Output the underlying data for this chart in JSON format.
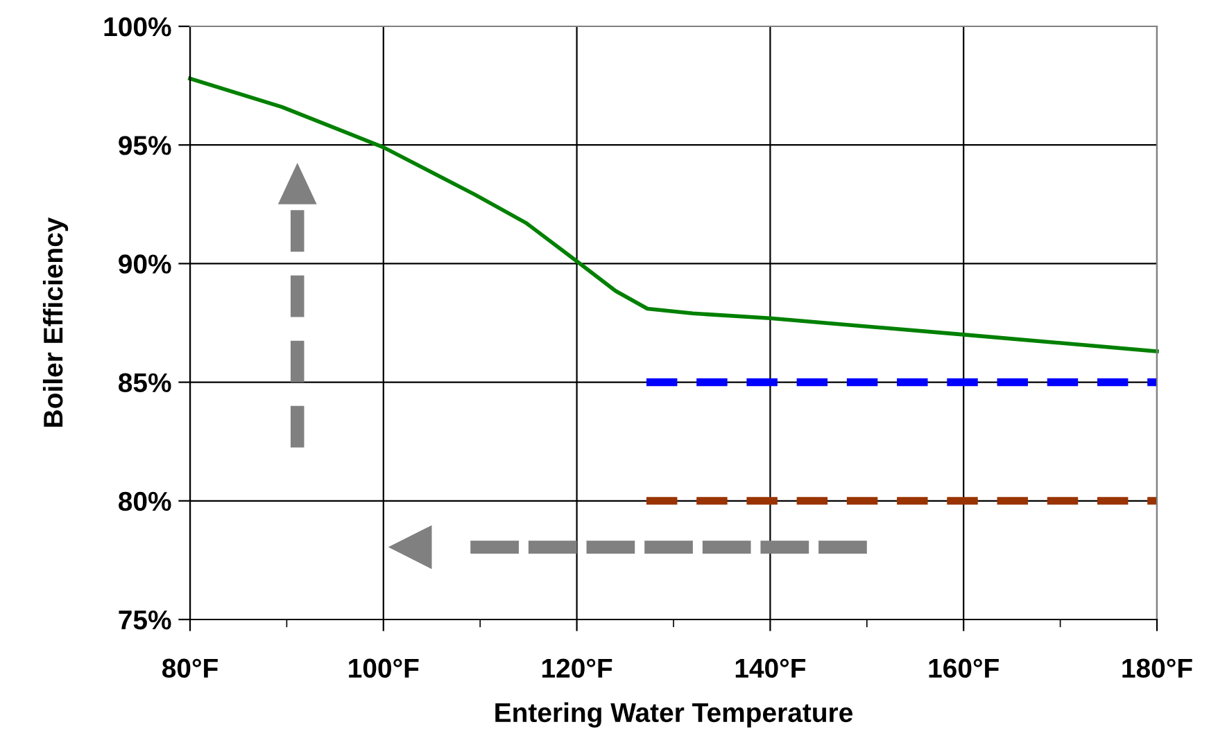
{
  "chart_data": {
    "type": "line",
    "xlabel": "Entering Water Temperature",
    "ylabel": "Boiler Efficiency",
    "xlim": [
      80,
      180
    ],
    "ylim": [
      75,
      100
    ],
    "xticks": [
      {
        "value": 80,
        "label": "80°F"
      },
      {
        "value": 90,
        "label": null
      },
      {
        "value": 100,
        "label": "100°F"
      },
      {
        "value": 110,
        "label": null
      },
      {
        "value": 120,
        "label": "120°F"
      },
      {
        "value": 130,
        "label": null
      },
      {
        "value": 140,
        "label": "140°F"
      },
      {
        "value": 150,
        "label": null
      },
      {
        "value": 160,
        "label": "160°F"
      },
      {
        "value": 170,
        "label": null
      },
      {
        "value": 180,
        "label": "180°F"
      }
    ],
    "yticks": [
      {
        "value": 75,
        "label": "75%"
      },
      {
        "value": 80,
        "label": "80%"
      },
      {
        "value": 85,
        "label": "85%"
      },
      {
        "value": 90,
        "label": "90%"
      },
      {
        "value": 95,
        "label": "95%"
      },
      {
        "value": 100,
        "label": "100%"
      }
    ],
    "grid": true,
    "legend": false,
    "series": [
      {
        "color": "#008000",
        "line_style": "solid",
        "x": [
          80,
          89.5,
          100,
          109.5,
          114.8,
          120,
          124,
          127.3,
          132,
          140,
          148.6,
          160.2,
          180
        ],
        "values": [
          97.8,
          96.6,
          94.9,
          92.9,
          91.7,
          90.1,
          88.85,
          88.1,
          87.9,
          87.7,
          87.4,
          87.0,
          86.3
        ]
      },
      {
        "color": "#0000ff",
        "line_style": "dashed",
        "x": [
          127.2,
          180
        ],
        "values": [
          85,
          85
        ]
      },
      {
        "color": "#993300",
        "line_style": "dashed",
        "x": [
          127.2,
          180
        ],
        "values": [
          80,
          80
        ]
      }
    ]
  }
}
